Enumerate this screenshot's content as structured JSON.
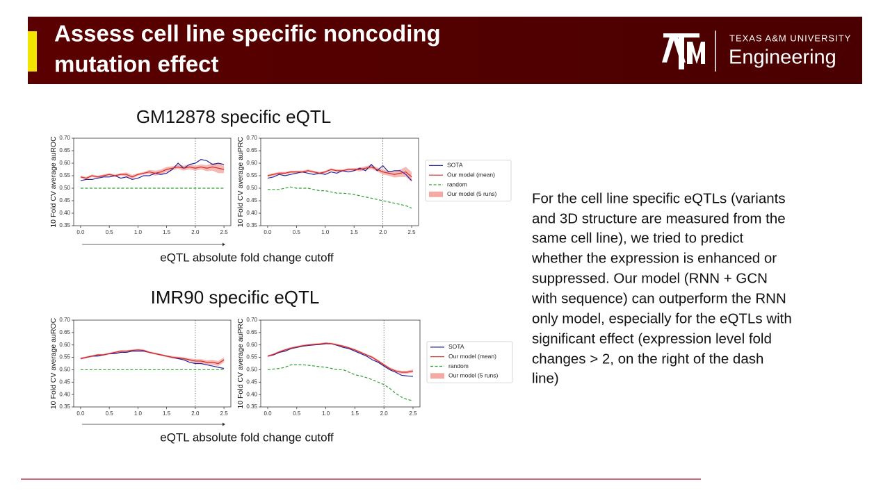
{
  "header": {
    "title": [
      "Assess cell line specific noncoding",
      "mutation effect"
    ],
    "university": "TEXAS A&M UNIVERSITY",
    "college": "Engineering"
  },
  "panels": [
    {
      "title": "GM12878 specific eQTL",
      "xlabel": "eQTL absolute fold change cutoff"
    },
    {
      "title": "IMR90 specific eQTL",
      "xlabel": "eQTL absolute fold change cutoff"
    }
  ],
  "text": {
    "lines": [
      "For the cell line specific eQTLs (variants",
      "and 3D structure are measured from the",
      "same cell line), we tried to predict",
      "whether the expression is enhanced or",
      "suppressed. Our model (RNN + GCN",
      "with sequence) can outperform the RNN",
      "only model, especially for the eQTLs with",
      "significant effect (expression level fold",
      "changes > 2, on the right of the dash",
      "line)"
    ]
  },
  "chart_data": [
    {
      "type": "line",
      "ylabel": "10 Fold CV average auROC",
      "vline": 2.0,
      "x": [
        0,
        0.1,
        0.2,
        0.3,
        0.4,
        0.5,
        0.6,
        0.7,
        0.8,
        0.9,
        1.0,
        1.1,
        1.2,
        1.3,
        1.4,
        1.5,
        1.6,
        1.7,
        1.8,
        1.9,
        2.0,
        2.1,
        2.2,
        2.3,
        2.4,
        2.5
      ],
      "xlim": [
        -0.12,
        2.62
      ],
      "xticks": [
        {
          "value": 0,
          "label": "0.0"
        },
        0.5,
        {
          "value": 1,
          "label": "1.0"
        },
        1.5,
        {
          "value": 2,
          "label": "2.0"
        },
        2.5
      ],
      "ylim": [
        0.35,
        0.7
      ],
      "yticks": [
        0.35,
        {
          "value": 0.4,
          "label": "0.40"
        },
        0.45,
        {
          "value": 0.5,
          "label": "0.50"
        },
        0.55,
        {
          "value": 0.6,
          "label": "0.60"
        },
        0.65,
        {
          "value": 0.7,
          "label": "0.70"
        }
      ],
      "series": [
        {
          "color": "#22229a",
          "values": [
            0.53,
            0.535,
            0.535,
            0.54,
            0.545,
            0.545,
            0.55,
            0.54,
            0.545,
            0.535,
            0.54,
            0.55,
            0.55,
            0.56,
            0.555,
            0.56,
            0.575,
            0.6,
            0.58,
            0.595,
            0.6,
            0.615,
            0.61,
            0.595,
            0.6,
            0.595
          ]
        },
        {
          "color": "#d62728",
          "values": [
            0.545,
            0.54,
            0.55,
            0.545,
            0.55,
            0.555,
            0.55,
            0.555,
            0.555,
            0.545,
            0.555,
            0.56,
            0.565,
            0.56,
            0.565,
            0.575,
            0.58,
            0.585,
            0.58,
            0.585,
            0.58,
            0.585,
            0.58,
            0.585,
            0.58,
            0.575
          ],
          "band": {
            "color": "#f4a9a3",
            "errors": [
              0.005,
              0.005,
              0.005,
              0.005,
              0.005,
              0.005,
              0.005,
              0.005,
              0.008,
              0.008,
              0.005,
              0.005,
              0.008,
              0.01,
              0.01,
              0.01,
              0.008,
              0.008,
              0.01,
              0.01,
              0.01,
              0.01,
              0.012,
              0.015,
              0.02,
              0.015
            ]
          }
        },
        {
          "color": "#2ca02c",
          "dash": true,
          "values": [
            0.5,
            0.5,
            0.5,
            0.5,
            0.5,
            0.5,
            0.5,
            0.5,
            0.5,
            0.5,
            0.5,
            0.5,
            0.5,
            0.5,
            0.5,
            0.5,
            0.5,
            0.5,
            0.5,
            0.5,
            0.5,
            0.5,
            0.5,
            0.5,
            0.5,
            0.5
          ]
        }
      ]
    },
    {
      "type": "line",
      "ylabel": "10 Fold CV average auPRC",
      "vline": 2.0,
      "legend": "outside right",
      "x": [
        0,
        0.1,
        0.2,
        0.3,
        0.4,
        0.5,
        0.6,
        0.7,
        0.8,
        0.9,
        1.0,
        1.1,
        1.2,
        1.3,
        1.4,
        1.5,
        1.6,
        1.7,
        1.8,
        1.9,
        2.0,
        2.1,
        2.2,
        2.3,
        2.4,
        2.5
      ],
      "xlim": [
        -0.12,
        2.62
      ],
      "xticks": [
        {
          "value": 0,
          "label": "0.0"
        },
        0.5,
        {
          "value": 1,
          "label": "1.0"
        },
        1.5,
        {
          "value": 2,
          "label": "2.0"
        },
        2.5
      ],
      "ylim": [
        0.35,
        0.7
      ],
      "yticks": [
        0.35,
        {
          "value": 0.4,
          "label": "0.40"
        },
        0.45,
        {
          "value": 0.5,
          "label": "0.50"
        },
        0.55,
        {
          "value": 0.6,
          "label": "0.60"
        },
        0.65,
        {
          "value": 0.7,
          "label": "0.70"
        }
      ],
      "series": [
        {
          "name": "SOTA",
          "color": "#22229a",
          "values": [
            0.54,
            0.545,
            0.555,
            0.55,
            0.555,
            0.56,
            0.565,
            0.56,
            0.555,
            0.56,
            0.555,
            0.565,
            0.56,
            0.57,
            0.565,
            0.57,
            0.58,
            0.57,
            0.595,
            0.57,
            0.59,
            0.565,
            0.57,
            0.57,
            0.555,
            0.53
          ]
        },
        {
          "name": "Our model (mean)",
          "color": "#d62728",
          "values": [
            0.55,
            0.555,
            0.56,
            0.56,
            0.565,
            0.565,
            0.565,
            0.57,
            0.565,
            0.56,
            0.565,
            0.575,
            0.57,
            0.57,
            0.575,
            0.575,
            0.575,
            0.58,
            0.585,
            0.575,
            0.565,
            0.56,
            0.555,
            0.56,
            0.565,
            0.545
          ],
          "band": {
            "name": "Our model (5 runs)",
            "color": "#f4a9a3",
            "errors": [
              0.005,
              0.005,
              0.005,
              0.005,
              0.005,
              0.005,
              0.005,
              0.005,
              0.005,
              0.005,
              0.005,
              0.005,
              0.005,
              0.005,
              0.005,
              0.005,
              0.008,
              0.008,
              0.008,
              0.008,
              0.01,
              0.01,
              0.012,
              0.015,
              0.02,
              0.02
            ]
          }
        },
        {
          "name": "random",
          "color": "#2ca02c",
          "dash": true,
          "values": [
            0.495,
            0.495,
            0.495,
            0.5,
            0.505,
            0.5,
            0.5,
            0.5,
            0.495,
            0.49,
            0.49,
            0.485,
            0.48,
            0.48,
            0.478,
            0.475,
            0.47,
            0.465,
            0.46,
            0.455,
            0.45,
            0.445,
            0.44,
            0.435,
            0.43,
            0.42
          ]
        }
      ]
    },
    {
      "type": "line",
      "ylabel": "10 Fold CV average auROC",
      "vline": 2.0,
      "x": [
        0,
        0.1,
        0.2,
        0.3,
        0.4,
        0.5,
        0.6,
        0.7,
        0.8,
        0.9,
        1.0,
        1.1,
        1.2,
        1.3,
        1.4,
        1.5,
        1.6,
        1.7,
        1.8,
        1.9,
        2.0,
        2.1,
        2.2,
        2.3,
        2.4,
        2.5
      ],
      "xlim": [
        -0.12,
        2.62
      ],
      "xticks": [
        {
          "value": 0,
          "label": "0.0"
        },
        0.5,
        {
          "value": 1,
          "label": "1.0"
        },
        1.5,
        {
          "value": 2,
          "label": "2.0"
        },
        2.5
      ],
      "ylim": [
        0.35,
        0.7
      ],
      "yticks": [
        0.35,
        {
          "value": 0.4,
          "label": "0.40"
        },
        0.45,
        {
          "value": 0.5,
          "label": "0.50"
        },
        0.55,
        {
          "value": 0.6,
          "label": "0.60"
        },
        0.65,
        {
          "value": 0.7,
          "label": "0.70"
        }
      ],
      "series": [
        {
          "color": "#22229a",
          "values": [
            0.545,
            0.55,
            0.555,
            0.555,
            0.56,
            0.565,
            0.565,
            0.57,
            0.57,
            0.575,
            0.575,
            0.575,
            0.57,
            0.565,
            0.56,
            0.555,
            0.55,
            0.545,
            0.54,
            0.53,
            0.525,
            0.525,
            0.52,
            0.515,
            0.51,
            0.505
          ]
        },
        {
          "color": "#d62728",
          "values": [
            0.545,
            0.55,
            0.555,
            0.56,
            0.56,
            0.565,
            0.57,
            0.575,
            0.575,
            0.578,
            0.58,
            0.578,
            0.57,
            0.565,
            0.56,
            0.555,
            0.55,
            0.548,
            0.545,
            0.54,
            0.535,
            0.535,
            0.53,
            0.53,
            0.525,
            0.54
          ],
          "band": {
            "color": "#f4a9a3",
            "errors": [
              0.004,
              0.004,
              0.004,
              0.004,
              0.004,
              0.004,
              0.004,
              0.004,
              0.004,
              0.004,
              0.004,
              0.004,
              0.004,
              0.004,
              0.004,
              0.004,
              0.005,
              0.005,
              0.005,
              0.006,
              0.008,
              0.008,
              0.008,
              0.01,
              0.01,
              0.01
            ]
          }
        },
        {
          "color": "#2ca02c",
          "dash": true,
          "values": [
            0.5,
            0.5,
            0.5,
            0.5,
            0.5,
            0.5,
            0.5,
            0.5,
            0.5,
            0.5,
            0.5,
            0.5,
            0.5,
            0.5,
            0.5,
            0.5,
            0.5,
            0.5,
            0.5,
            0.5,
            0.5,
            0.5,
            0.5,
            0.5,
            0.5,
            0.5
          ]
        }
      ]
    },
    {
      "type": "line",
      "ylabel": "10 Fold CV average auPRC",
      "vline": 2.0,
      "legend": "outside right",
      "x": [
        0,
        0.1,
        0.2,
        0.3,
        0.4,
        0.5,
        0.6,
        0.7,
        0.8,
        0.9,
        1.0,
        1.1,
        1.2,
        1.3,
        1.4,
        1.5,
        1.6,
        1.7,
        1.8,
        1.9,
        2.0,
        2.1,
        2.2,
        2.3,
        2.4,
        2.5
      ],
      "xlim": [
        -0.12,
        2.62
      ],
      "xticks": [
        {
          "value": 0,
          "label": "0.0"
        },
        0.5,
        {
          "value": 1,
          "label": "1.0"
        },
        1.5,
        {
          "value": 2,
          "label": "2.0"
        },
        2.5
      ],
      "ylim": [
        0.35,
        0.7
      ],
      "yticks": [
        0.35,
        {
          "value": 0.4,
          "label": "0.40"
        },
        0.45,
        {
          "value": 0.5,
          "label": "0.50"
        },
        0.55,
        {
          "value": 0.6,
          "label": "0.60"
        },
        0.65,
        {
          "value": 0.7,
          "label": "0.70"
        }
      ],
      "series": [
        {
          "name": "SOTA",
          "color": "#22229a",
          "values": [
            0.555,
            0.56,
            0.57,
            0.575,
            0.585,
            0.59,
            0.595,
            0.598,
            0.6,
            0.602,
            0.605,
            0.605,
            0.598,
            0.59,
            0.585,
            0.575,
            0.565,
            0.555,
            0.54,
            0.53,
            0.515,
            0.5,
            0.49,
            0.478,
            0.475,
            0.473
          ]
        },
        {
          "name": "Our model (mean)",
          "color": "#d62728",
          "values": [
            0.555,
            0.562,
            0.572,
            0.58,
            0.587,
            0.592,
            0.597,
            0.6,
            0.602,
            0.604,
            0.607,
            0.605,
            0.6,
            0.595,
            0.588,
            0.58,
            0.57,
            0.56,
            0.55,
            0.535,
            0.52,
            0.505,
            0.495,
            0.49,
            0.49,
            0.495
          ],
          "band": {
            "name": "Our model (5 runs)",
            "color": "#f4a9a3",
            "errors": [
              0.004,
              0.004,
              0.004,
              0.004,
              0.004,
              0.004,
              0.004,
              0.004,
              0.004,
              0.004,
              0.004,
              0.004,
              0.004,
              0.004,
              0.004,
              0.004,
              0.004,
              0.004,
              0.005,
              0.005,
              0.005,
              0.005,
              0.005,
              0.006,
              0.006,
              0.006
            ]
          }
        },
        {
          "name": "random",
          "color": "#2ca02c",
          "dash": true,
          "values": [
            0.5,
            0.503,
            0.505,
            0.51,
            0.52,
            0.52,
            0.52,
            0.518,
            0.515,
            0.512,
            0.51,
            0.505,
            0.5,
            0.5,
            0.49,
            0.48,
            0.475,
            0.468,
            0.46,
            0.45,
            0.44,
            0.425,
            0.405,
            0.39,
            0.38,
            0.375
          ]
        }
      ]
    }
  ]
}
